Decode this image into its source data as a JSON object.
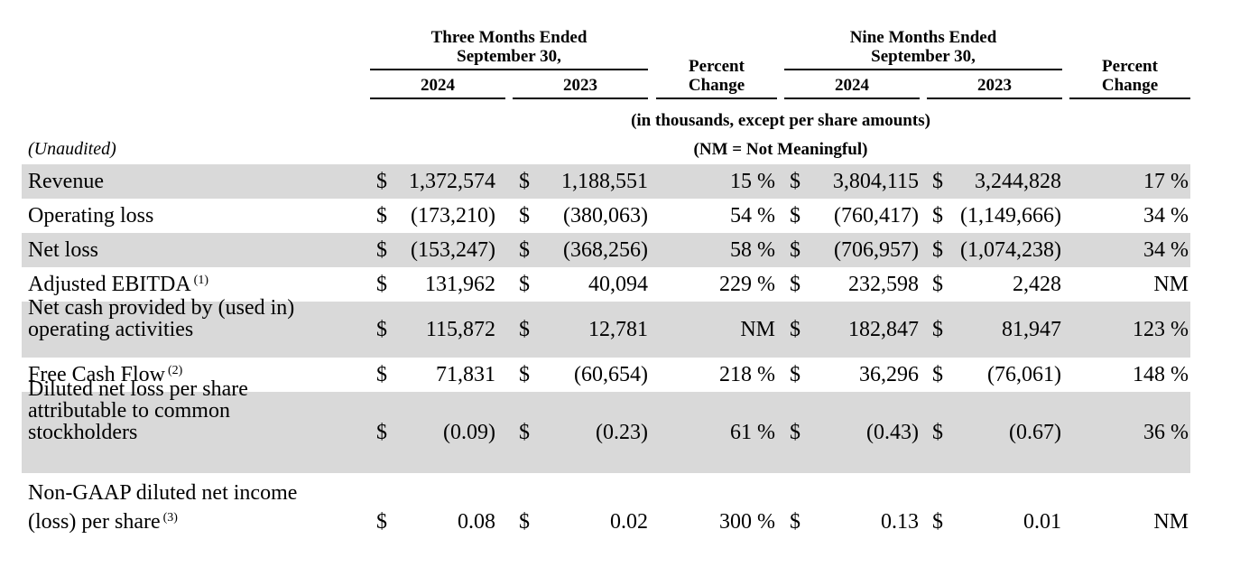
{
  "header": {
    "three_months": "Three Months Ended",
    "three_months_date": "September 30,",
    "nine_months": "Nine Months Ended",
    "nine_months_date": "September 30,",
    "year_2024": "2024",
    "year_2023": "2023",
    "percent": "Percent",
    "change": "Change"
  },
  "notes": {
    "units": "(in thousands, except per share amounts)",
    "nm": "(NM = Not Meaningful)",
    "unaudited": "(Unaudited)"
  },
  "rows": [
    {
      "label": [
        "Revenue"
      ],
      "sup": "",
      "c1_d": "$",
      "c1": "1,372,574",
      "c2_d": "$",
      "c2": "1,188,551",
      "p1": "15 %",
      "c3_d": "$",
      "c3": "3,804,115",
      "c4_d": "$",
      "c4": "3,244,828",
      "p2": "17 %"
    },
    {
      "label": [
        "Operating loss"
      ],
      "sup": "",
      "c1_d": "$",
      "c1": "(173,210)",
      "c2_d": "$",
      "c2": "(380,063)",
      "p1": "54 %",
      "c3_d": "$",
      "c3": "(760,417)",
      "c4_d": "$",
      "c4": "(1,149,666)",
      "p2": "34 %"
    },
    {
      "label": [
        "Net loss"
      ],
      "sup": "",
      "c1_d": "$",
      "c1": "(153,247)",
      "c2_d": "$",
      "c2": "(368,256)",
      "p1": "58 %",
      "c3_d": "$",
      "c3": "(706,957)",
      "c4_d": "$",
      "c4": "(1,074,238)",
      "p2": "34 %"
    },
    {
      "label": [
        "Adjusted EBITDA"
      ],
      "sup": "(1)",
      "c1_d": "$",
      "c1": "131,962",
      "c2_d": "$",
      "c2": "40,094",
      "p1": "229 %",
      "c3_d": "$",
      "c3": "232,598",
      "c4_d": "$",
      "c4": "2,428",
      "p2": "NM"
    },
    {
      "label": [
        "Net cash provided by (used in)",
        "operating activities"
      ],
      "sup": "",
      "c1_d": "$",
      "c1": "115,872",
      "c2_d": "$",
      "c2": "12,781",
      "p1": "NM",
      "c3_d": "$",
      "c3": "182,847",
      "c4_d": "$",
      "c4": "81,947",
      "p2": "123 %"
    },
    {
      "label": [
        "Free Cash Flow"
      ],
      "sup": "(2)",
      "c1_d": "$",
      "c1": "71,831",
      "c2_d": "$",
      "c2": "(60,654)",
      "p1": "218 %",
      "c3_d": "$",
      "c3": "36,296",
      "c4_d": "$",
      "c4": "(76,061)",
      "p2": "148 %"
    },
    {
      "label": [
        "Diluted net loss per share",
        "attributable to common",
        "stockholders"
      ],
      "sup": "",
      "c1_d": "$",
      "c1": "(0.09)",
      "c2_d": "$",
      "c2": "(0.23)",
      "p1": "61 %",
      "c3_d": "$",
      "c3": "(0.43)",
      "c4_d": "$",
      "c4": "(0.67)",
      "p2": "36 %"
    },
    {
      "label": [
        "Non-GAAP diluted net income",
        "(loss) per share"
      ],
      "sup": "(3)",
      "c1_d": "$",
      "c1": "0.08",
      "c2_d": "$",
      "c2": "0.02",
      "p1": "300 %",
      "c3_d": "$",
      "c3": "0.13",
      "c4_d": "$",
      "c4": "0.01",
      "p2": "NM"
    }
  ]
}
